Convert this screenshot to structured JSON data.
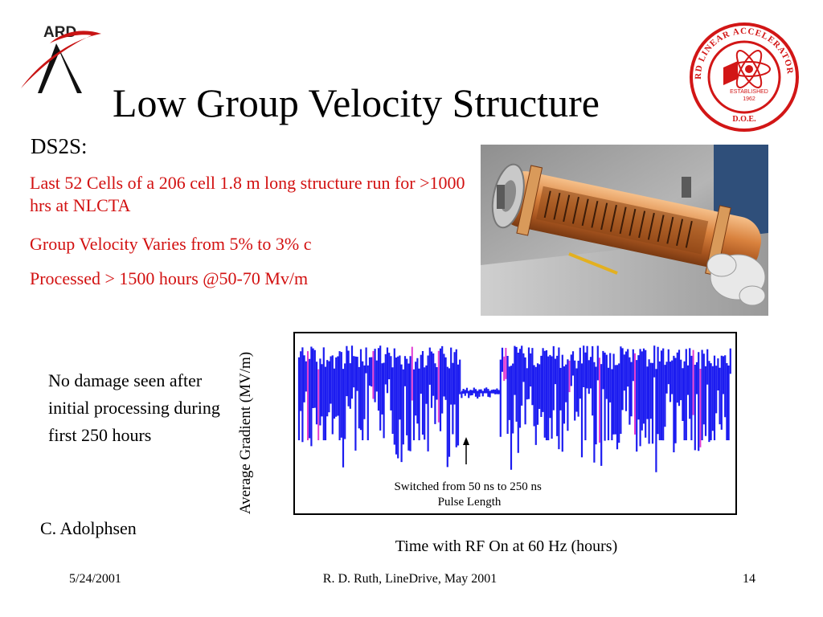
{
  "slide": {
    "title": "Low Group Velocity Structure",
    "heading": "DS2S:",
    "bullets": [
      "Last 52 Cells of a 206 cell 1.8 m long structure run for >1000 hrs at NLCTA",
      "Group Velocity Varies from 5% to 3% c",
      "Processed > 1500 hours @50-70 Mv/m"
    ],
    "side_note": "No damage seen after initial processing during first 250 hours",
    "credit": "C. Adolphsen"
  },
  "logos": {
    "ard_text": "ARD",
    "seal_top": "STANFORD LINEAR ACCELERATOR CENTER",
    "seal_established": "ESTABLISHED",
    "seal_year": "1962",
    "seal_bottom": "D.O.E."
  },
  "photo": {
    "icon": "copper-accelerator-structure-photo"
  },
  "chart_data": {
    "type": "line",
    "title": "",
    "xlabel": "Time with RF On at 60 Hz (hours)",
    "ylabel": "Average Gradient (MV/m)",
    "annotation": "Switched from 50 ns to 250 ns Pulse Length",
    "colors": {
      "trace": "#1c1cf0",
      "highlight": "#e23ad2"
    }
  },
  "footer": {
    "date": "5/24/2001",
    "center": "R. D. Ruth, LineDrive, May 2001",
    "page": "14"
  },
  "colors": {
    "accent_red": "#d21010"
  }
}
